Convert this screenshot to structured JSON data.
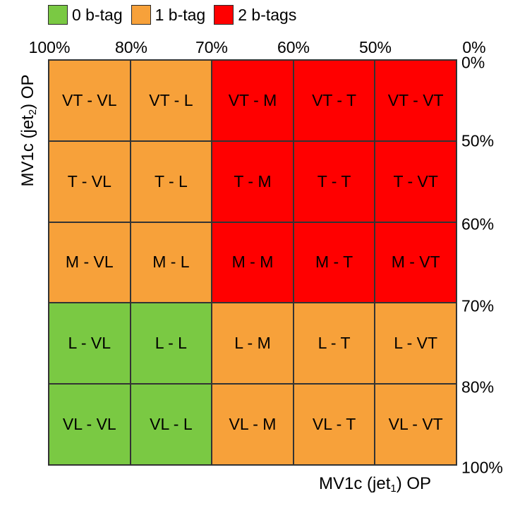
{
  "legend": [
    {
      "label": "0 b-tag",
      "color": "#7ac943"
    },
    {
      "label": "1 b-tag",
      "color": "#f7a13a"
    },
    {
      "label": "2 b-tags",
      "color": "#ff0000"
    }
  ],
  "x_axis": {
    "label_prefix": "MV1c (jet",
    "label_sub": "1",
    "label_suffix": ") OP",
    "ticks": [
      "100%",
      "80%",
      "70%",
      "60%",
      "50%",
      "0%"
    ]
  },
  "y_axis": {
    "label_prefix": "MV1c (jet",
    "label_sub": "2",
    "label_suffix": ") OP",
    "ticks": [
      "0%",
      "50%",
      "60%",
      "70%",
      "80%",
      "100%"
    ]
  },
  "grid": {
    "rows": [
      [
        {
          "text": "VT - VL",
          "tags": 1
        },
        {
          "text": "VT - L",
          "tags": 1
        },
        {
          "text": "VT - M",
          "tags": 2
        },
        {
          "text": "VT - T",
          "tags": 2
        },
        {
          "text": "VT - VT",
          "tags": 2
        }
      ],
      [
        {
          "text": "T - VL",
          "tags": 1
        },
        {
          "text": "T - L",
          "tags": 1
        },
        {
          "text": "T - M",
          "tags": 2
        },
        {
          "text": "T - T",
          "tags": 2
        },
        {
          "text": "T - VT",
          "tags": 2
        }
      ],
      [
        {
          "text": "M - VL",
          "tags": 1
        },
        {
          "text": "M - L",
          "tags": 1
        },
        {
          "text": "M - M",
          "tags": 2
        },
        {
          "text": "M - T",
          "tags": 2
        },
        {
          "text": "M - VT",
          "tags": 2
        }
      ],
      [
        {
          "text": "L - VL",
          "tags": 0
        },
        {
          "text": "L - L",
          "tags": 0
        },
        {
          "text": "L - M",
          "tags": 1
        },
        {
          "text": "L - T",
          "tags": 1
        },
        {
          "text": "L - VT",
          "tags": 1
        }
      ],
      [
        {
          "text": "VL - VL",
          "tags": 0
        },
        {
          "text": "VL - L",
          "tags": 0
        },
        {
          "text": "VL - M",
          "tags": 1
        },
        {
          "text": "VL - T",
          "tags": 1
        },
        {
          "text": "VL - VT",
          "tags": 1
        }
      ]
    ]
  }
}
